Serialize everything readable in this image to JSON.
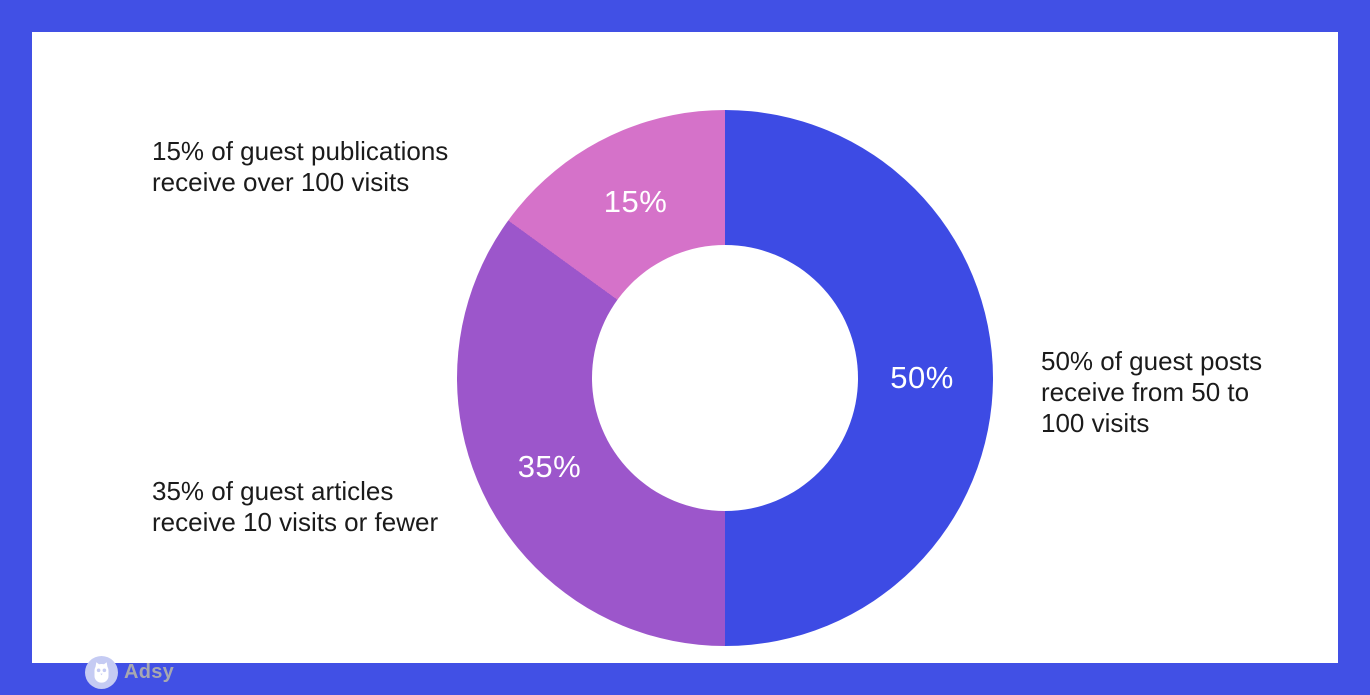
{
  "page": {
    "frame_color": "#4150e5",
    "canvas_color": "#ffffff"
  },
  "chart_data": {
    "type": "pie",
    "subtype": "donut",
    "title": "",
    "direction": "clockwise",
    "start_angle_deg": 0,
    "hole_ratio": 0.5,
    "label_color": "#ffffff",
    "annotation_color": "#1b1b1b",
    "slices": [
      {
        "name": "guest posts receiving 50 to 100 visits",
        "label": "50%",
        "value": 50,
        "color": "#3d4be4",
        "annotation": "50% of guest posts\nreceive from 50 to\n100 visits"
      },
      {
        "name": "guest articles receiving 10 visits or fewer",
        "label": "35%",
        "value": 35,
        "color": "#9c56cb",
        "annotation": "35% of guest articles\nreceive 10 visits or fewer"
      },
      {
        "name": "guest publications receiving over 100 visits",
        "label": "15%",
        "value": 15,
        "color": "#d572c9",
        "annotation": "15% of guest publications\nreceive over 100 visits"
      }
    ]
  },
  "logo": {
    "text": "Adsy",
    "icon": "owl-icon",
    "icon_bg_color": "#c5cbf3",
    "text_color": "#a7a8b0"
  }
}
